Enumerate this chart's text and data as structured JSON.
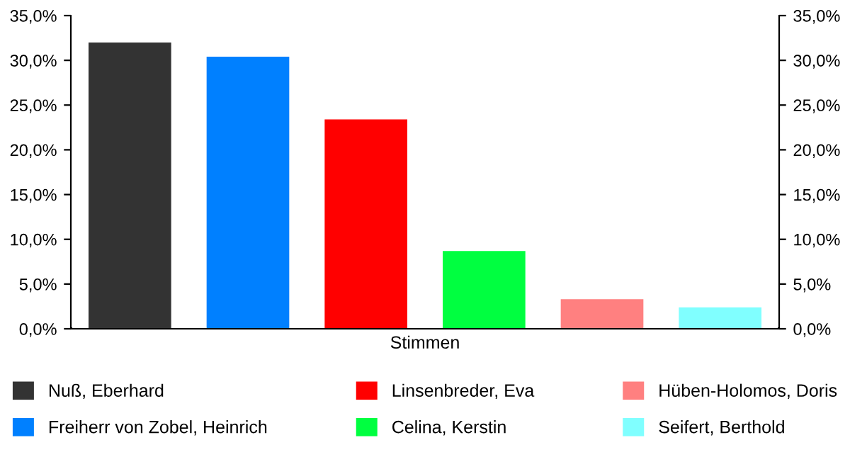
{
  "chart_data": {
    "type": "bar",
    "categories": [
      "Stimmen"
    ],
    "series": [
      {
        "name": "Nuß, Eberhard",
        "color": "#333333",
        "values": [
          32.0
        ]
      },
      {
        "name": "Freiherr von Zobel, Heinrich",
        "color": "#0080ff",
        "values": [
          30.4
        ]
      },
      {
        "name": "Linsenbreder, Eva",
        "color": "#ff0000",
        "values": [
          23.4
        ]
      },
      {
        "name": "Celina, Kerstin",
        "color": "#00ff40",
        "values": [
          8.7
        ]
      },
      {
        "name": "Hüben-Holomos, Doris",
        "color": "#ff8080",
        "values": [
          3.3
        ]
      },
      {
        "name": "Seifert, Berthold",
        "color": "#80ffff",
        "values": [
          2.4
        ]
      }
    ],
    "ylim": [
      0,
      35
    ],
    "yticks": [
      {
        "value": 0,
        "label": "0,0%"
      },
      {
        "value": 5,
        "label": "5,0%"
      },
      {
        "value": 10,
        "label": "10,0%"
      },
      {
        "value": 15,
        "label": "15,0%"
      },
      {
        "value": 20,
        "label": "20,0%"
      },
      {
        "value": 25,
        "label": "25,0%"
      },
      {
        "value": 30,
        "label": "30,0%"
      },
      {
        "value": 35,
        "label": "35,0%"
      }
    ],
    "grid": false,
    "legend": "bottom"
  }
}
